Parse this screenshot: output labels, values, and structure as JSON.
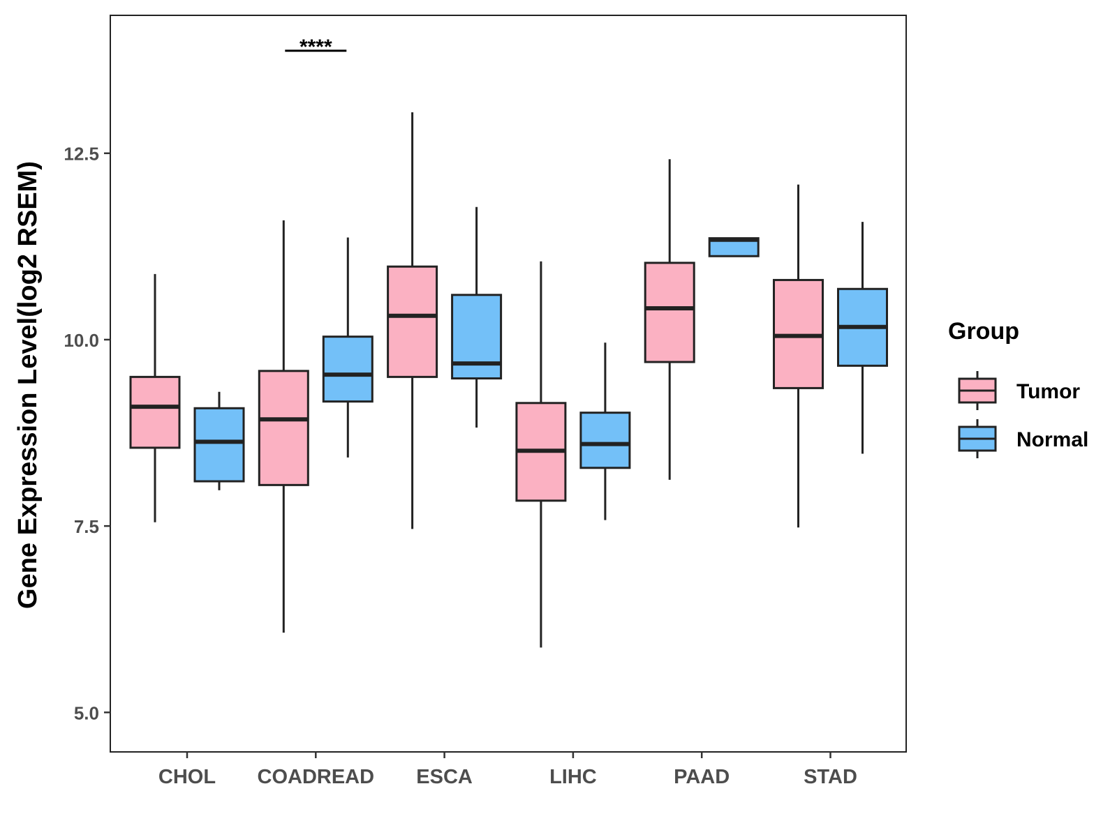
{
  "chart_data": {
    "type": "boxplot",
    "title": "",
    "xlabel": "",
    "ylabel": "Gene Expression Level(log2 RSEM)",
    "ylim": [
      4.47,
      14.35
    ],
    "yticks": [
      5.0,
      7.5,
      10.0,
      12.5
    ],
    "ytick_labels": [
      "5.0",
      "7.5",
      "10.0",
      "12.5"
    ],
    "categories": [
      "CHOL",
      "COADREAD",
      "ESCA",
      "LIHC",
      "PAAD",
      "STAD"
    ],
    "legend": {
      "title": "Group",
      "position": "right",
      "entries": [
        "Tumor",
        "Normal"
      ]
    },
    "series": [
      {
        "name": "Tumor",
        "color": "#fbb1c2",
        "boxes": [
          {
            "category": "CHOL",
            "min": 7.55,
            "q1": 8.55,
            "median": 9.1,
            "q3": 9.5,
            "max": 10.88
          },
          {
            "category": "COADREAD",
            "min": 6.07,
            "q1": 8.05,
            "median": 8.93,
            "q3": 9.58,
            "max": 11.6
          },
          {
            "category": "ESCA",
            "min": 7.46,
            "q1": 9.5,
            "median": 10.32,
            "q3": 10.98,
            "max": 13.05
          },
          {
            "category": "LIHC",
            "min": 5.87,
            "q1": 7.84,
            "median": 8.51,
            "q3": 9.15,
            "max": 11.05
          },
          {
            "category": "PAAD",
            "min": 8.12,
            "q1": 9.7,
            "median": 10.42,
            "q3": 11.03,
            "max": 12.42
          },
          {
            "category": "STAD",
            "min": 7.48,
            "q1": 9.35,
            "median": 10.05,
            "q3": 10.8,
            "max": 12.08
          }
        ]
      },
      {
        "name": "Normal",
        "color": "#73c0f8",
        "boxes": [
          {
            "category": "CHOL",
            "min": 7.98,
            "q1": 8.1,
            "median": 8.63,
            "q3": 9.08,
            "max": 9.3
          },
          {
            "category": "COADREAD",
            "min": 8.42,
            "q1": 9.17,
            "median": 9.53,
            "q3": 10.04,
            "max": 11.37
          },
          {
            "category": "ESCA",
            "min": 8.82,
            "q1": 9.48,
            "median": 9.68,
            "q3": 10.6,
            "max": 11.78
          },
          {
            "category": "LIHC",
            "min": 7.58,
            "q1": 8.28,
            "median": 8.6,
            "q3": 9.02,
            "max": 9.96
          },
          {
            "category": "PAAD",
            "min": 11.12,
            "q1": 11.12,
            "median": 11.34,
            "q3": 11.36,
            "max": 11.36
          },
          {
            "category": "STAD",
            "min": 8.47,
            "q1": 9.65,
            "median": 10.17,
            "q3": 10.68,
            "max": 11.58
          }
        ]
      }
    ],
    "annotations": [
      {
        "category": "COADREAD",
        "text": "****",
        "y": 13.95
      }
    ]
  }
}
